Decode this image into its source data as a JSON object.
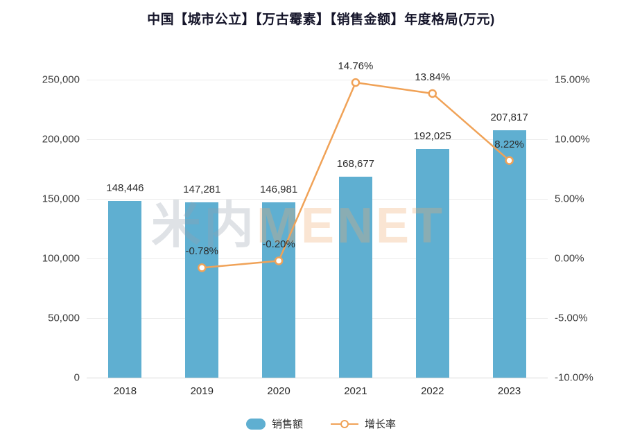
{
  "title": "中国【城市公立】【万古霉素】【销售金额】年度格局(万元)",
  "watermark": {
    "part1": "米内",
    "part2": "MENET"
  },
  "legend": [
    {
      "label": "销售额",
      "type": "bar",
      "color": "#5FAFD1"
    },
    {
      "label": "增长率",
      "type": "line",
      "color": "#F0A257"
    }
  ],
  "chart_data": {
    "type": "bar+line",
    "title": "中国【城市公立】【万古霉素】【销售金额】年度格局(万元)",
    "categories": [
      "2018",
      "2019",
      "2020",
      "2021",
      "2022",
      "2023"
    ],
    "series": [
      {
        "name": "销售额",
        "type": "bar",
        "axis": "left",
        "color": "#5FAFD1",
        "values": [
          148446,
          147281,
          146981,
          168677,
          192025,
          207817
        ],
        "labels": [
          "148,446",
          "147,281",
          "146,981",
          "168,677",
          "192,025",
          "207,817"
        ]
      },
      {
        "name": "增长率",
        "type": "line",
        "axis": "right",
        "color": "#F0A257",
        "values": [
          null,
          -0.78,
          -0.2,
          14.76,
          13.84,
          8.22
        ],
        "labels": [
          "",
          "-0.78%",
          "-0.20%",
          "14.76%",
          "13.84%",
          "8.22%"
        ]
      }
    ],
    "left_axis": {
      "min": 0,
      "max": 250000,
      "ticks": [
        0,
        50000,
        100000,
        150000,
        200000,
        250000
      ],
      "tick_labels": [
        "0",
        "50,000",
        "100,000",
        "150,000",
        "200,000",
        "250,000"
      ]
    },
    "right_axis": {
      "min": -10,
      "max": 15,
      "ticks": [
        -10,
        -5,
        0,
        5,
        10,
        15
      ],
      "tick_labels": [
        "-10.00%",
        "-5.00%",
        "0.00%",
        "5.00%",
        "10.00%",
        "15.00%"
      ]
    },
    "grid": true,
    "legend_position": "bottom"
  }
}
